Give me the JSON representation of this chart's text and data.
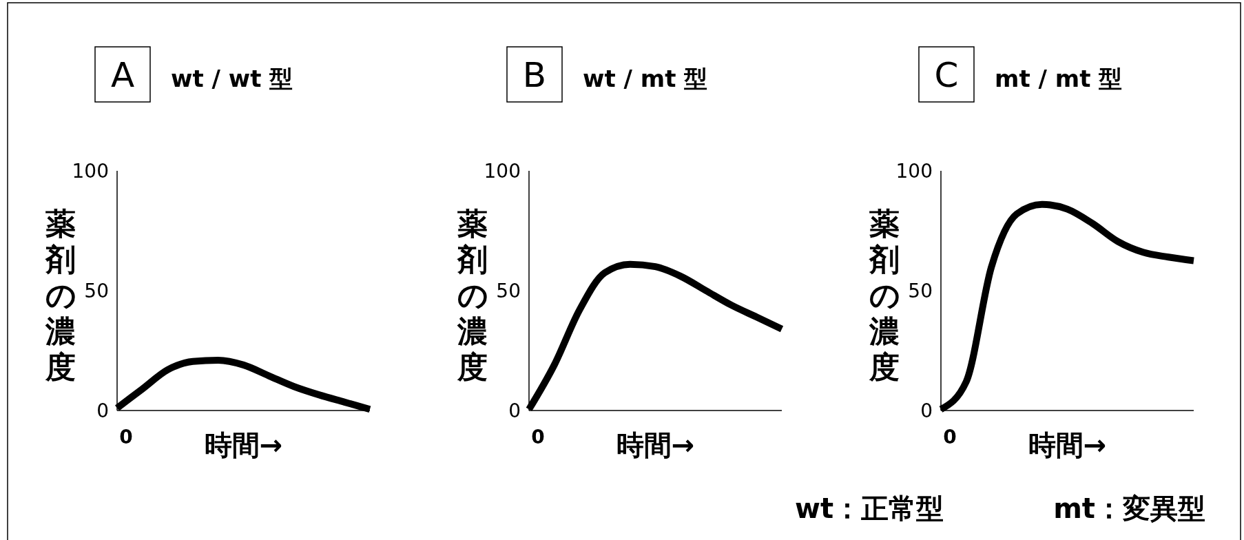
{
  "chart_data": [
    {
      "type": "line",
      "title": "wt / wt 型",
      "annotations": [
        "A"
      ],
      "xlabel": "時間→",
      "ylabel": "薬剤の濃度",
      "categories": [
        "0",
        null,
        null,
        null,
        null,
        null,
        null,
        null,
        null,
        null,
        null
      ],
      "ylim": [
        0,
        100
      ],
      "yticks": [
        0,
        50,
        100
      ],
      "grid": false,
      "series": [
        {
          "color": "#000000",
          "values": [
            1,
            9,
            17,
            20.5,
            21,
            19,
            14.5,
            10,
            6.5,
            3.5,
            0.5
          ]
        }
      ]
    },
    {
      "type": "line",
      "title": "wt / mt 型",
      "annotations": [
        "B"
      ],
      "xlabel": "時間→",
      "ylabel": "薬剤の濃度",
      "categories": [
        "0",
        null,
        null,
        null,
        null,
        null,
        null,
        null,
        null,
        null,
        null
      ],
      "ylim": [
        0,
        100
      ],
      "yticks": [
        0,
        50,
        100
      ],
      "grid": false,
      "series": [
        {
          "color": "#000000",
          "values": [
            0.5,
            19,
            42,
            57.5,
            61,
            60,
            56,
            50,
            44,
            39,
            34
          ]
        }
      ]
    },
    {
      "type": "line",
      "title": "mt / mt 型",
      "annotations": [
        "C",
        "wt：正常型",
        "mt：変異型"
      ],
      "xlabel": "時間→",
      "ylabel": "薬剤の濃度",
      "categories": [
        "0",
        null,
        null,
        null,
        null,
        null,
        null,
        null,
        null,
        null,
        null
      ],
      "ylim": [
        0,
        100
      ],
      "yticks": [
        0,
        50,
        100
      ],
      "grid": false,
      "series": [
        {
          "color": "#000000",
          "values": [
            0.5,
            12,
            60,
            82,
            86,
            84,
            78,
            70.5,
            66,
            64,
            62.5
          ]
        }
      ]
    }
  ]
}
